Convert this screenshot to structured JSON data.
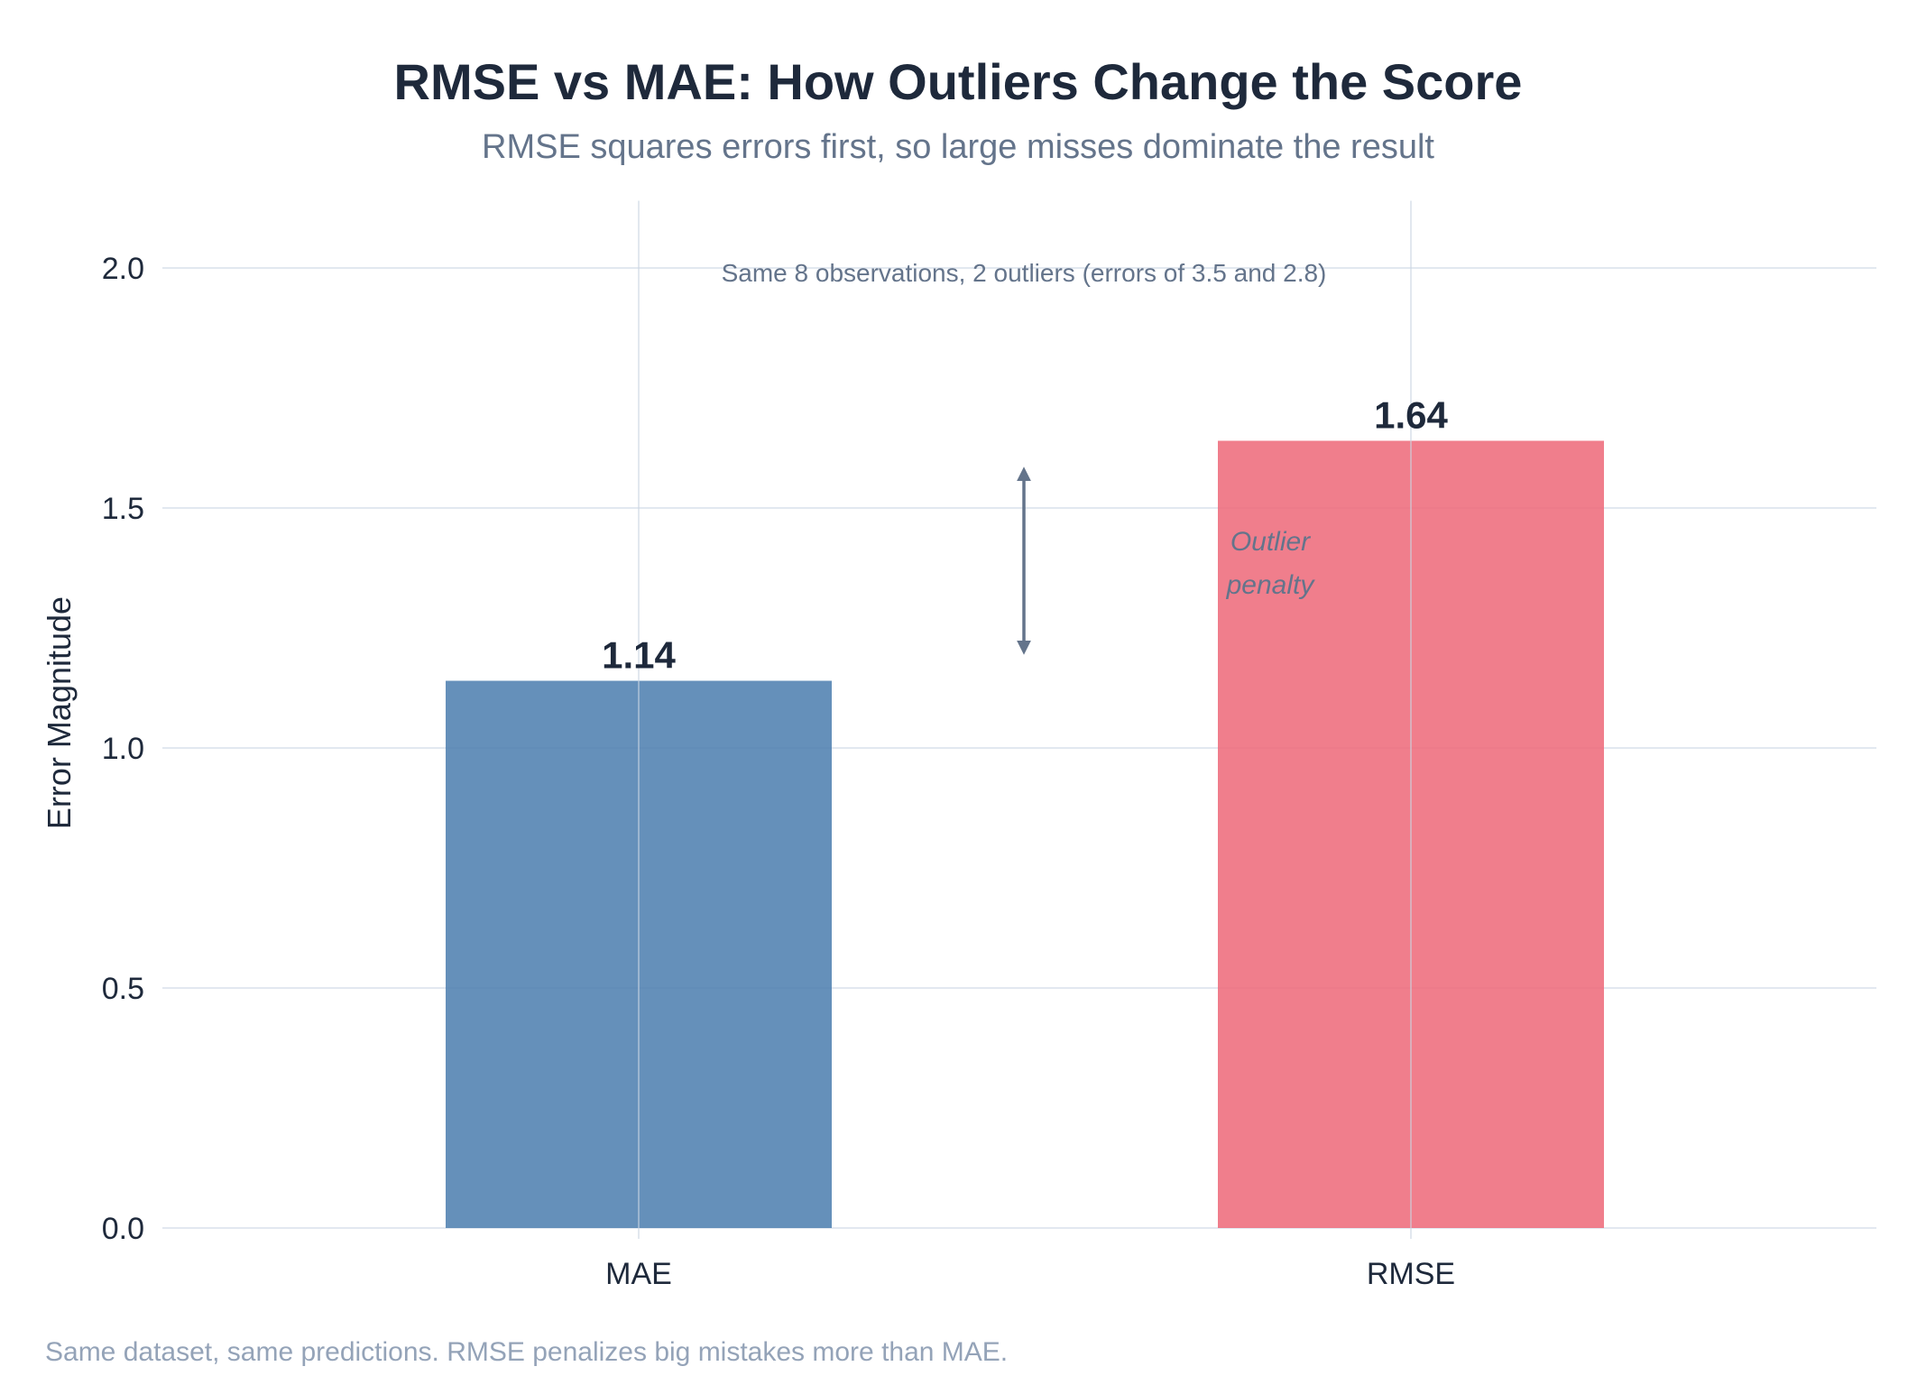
{
  "chart_data": {
    "type": "bar",
    "title": "RMSE vs MAE: How Outliers Change the Score",
    "subtitle": "RMSE squares errors first, so large misses dominate the result",
    "ylabel": "Error Magnitude",
    "xlabel": "",
    "categories": [
      "MAE",
      "RMSE"
    ],
    "values": [
      1.14,
      1.64
    ],
    "value_labels": [
      "1.14",
      "1.64"
    ],
    "colors": [
      "#4e7fb0",
      "#ee6b7b"
    ],
    "ylim": [
      0,
      2.14
    ],
    "yticks": [
      0.0,
      0.5,
      1.0,
      1.5,
      2.0
    ],
    "ytick_labels": [
      "0.0",
      "0.5",
      "1.0",
      "1.5",
      "2.0"
    ],
    "grid": true,
    "annotation_top": "Same 8 observations, 2 outliers (errors of 3.5 and 2.8)",
    "annotation_penalty": [
      "Outlier",
      "penalty"
    ],
    "arrow_range": [
      1.19,
      1.59
    ],
    "footnote": "Same dataset, same predictions. RMSE penalizes big mistakes more than MAE."
  }
}
